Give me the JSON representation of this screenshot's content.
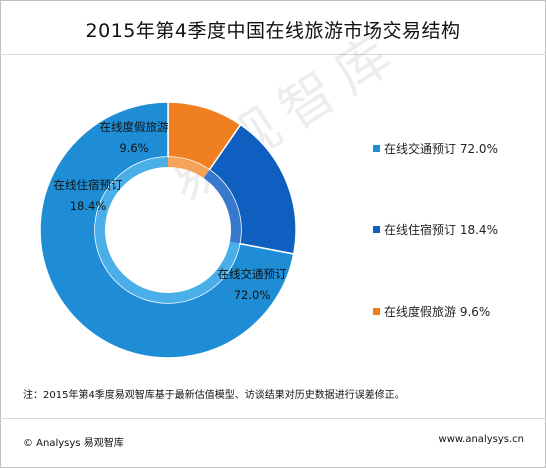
{
  "title": "2015年第4季度中国在线旅游市场交易结构",
  "watermark": "易观智库",
  "note": "注：2015年第4季度易观智库基于最新估值模型、访谈结果对历史数据进行误差修正。",
  "footer": {
    "left": "© Analysys 易观智库",
    "right": "www.analysys.cn"
  },
  "legend": [
    {
      "label": "在线交通预订",
      "value": "72.0%",
      "color": "#1f8dd6"
    },
    {
      "label": "在线住宿预订",
      "value": "18.4%",
      "color": "#0e5fbf"
    },
    {
      "label": "在线度假旅游",
      "value": "9.6%",
      "color": "#f07f22"
    }
  ],
  "chart_data": {
    "type": "pie",
    "title": "2015年第4季度中国在线旅游市场交易结构",
    "categories": [
      "在线交通预订",
      "在线住宿预订",
      "在线度假旅游"
    ],
    "values": [
      72.0,
      18.4,
      9.6
    ],
    "data_labels": [
      "72.0%",
      "18.4%",
      "9.6%"
    ],
    "colors": [
      "#1f8dd6",
      "#0e5fbf",
      "#f07f22"
    ],
    "inner_ring_colors": [
      "#4aaee8",
      "#3779cc",
      "#f5a25b"
    ],
    "legend_position": "right",
    "donut": true
  }
}
